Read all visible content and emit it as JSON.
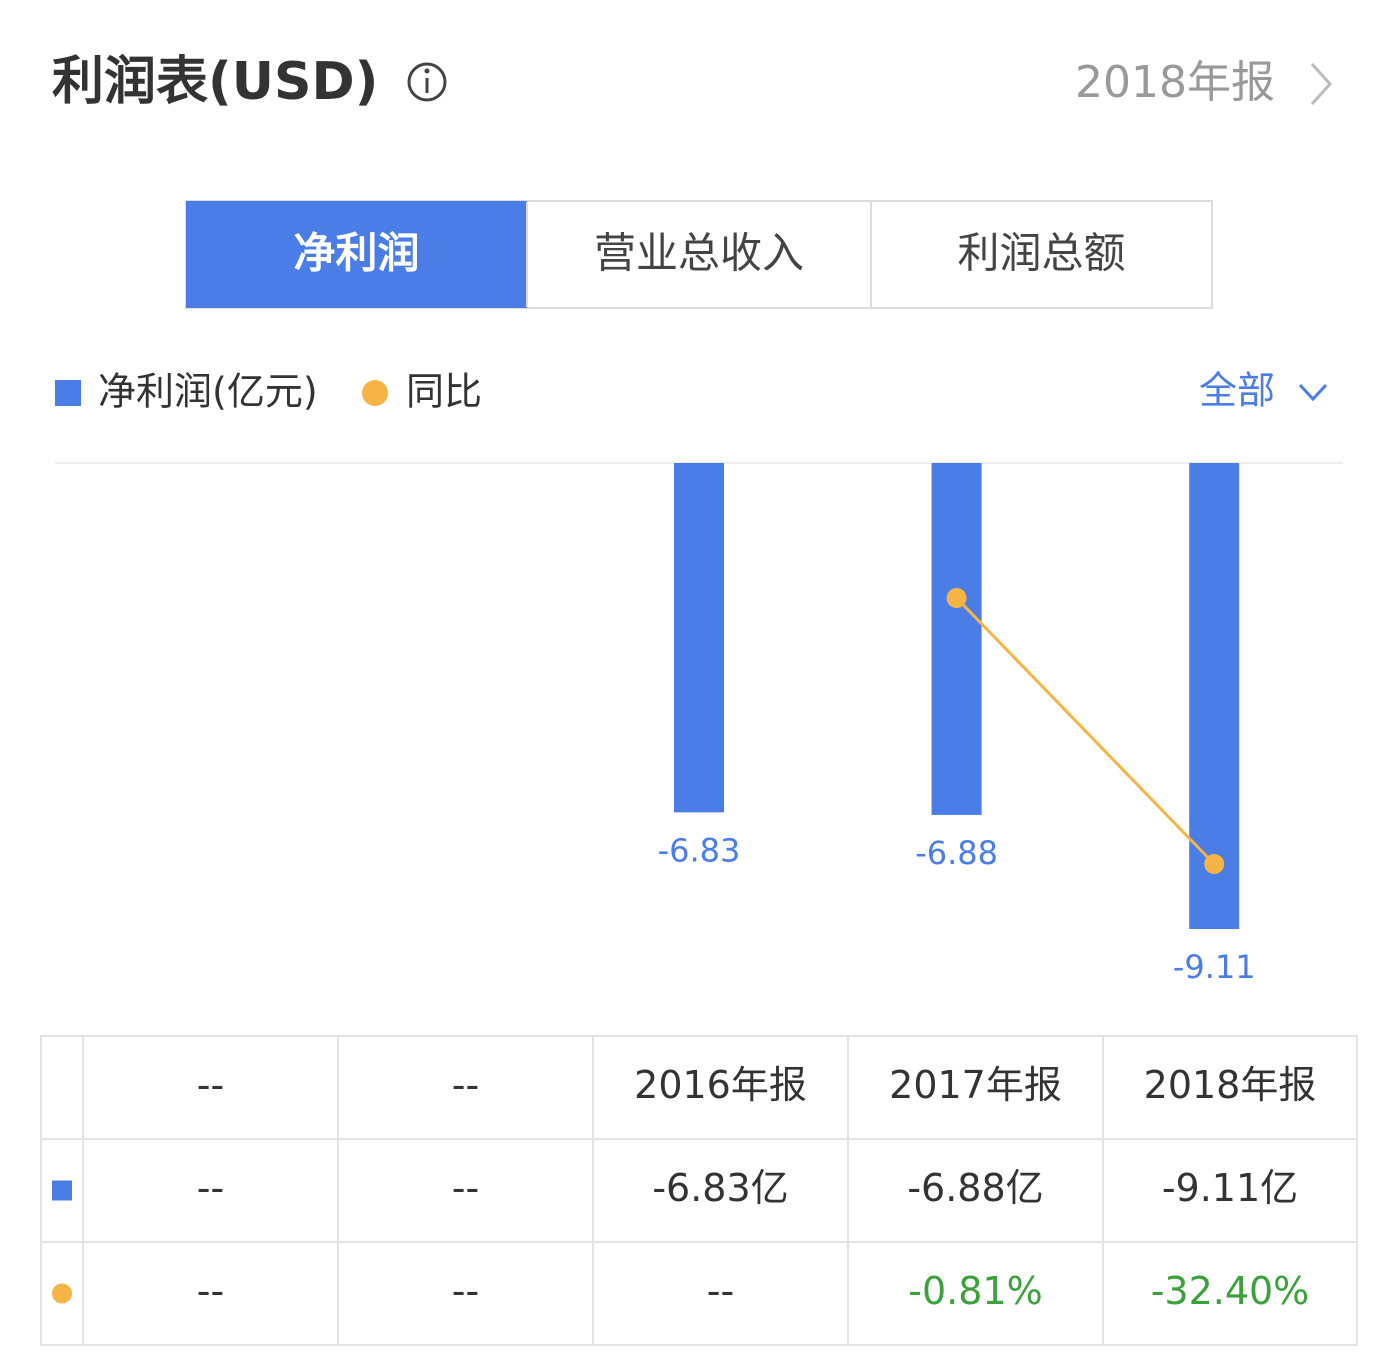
{
  "header": {
    "title": "利润表(USD)",
    "period": "2018年报"
  },
  "tabs": {
    "items": [
      "净利润",
      "营业总收入",
      "利润总额"
    ],
    "active": 0
  },
  "filter": "全部",
  "chart_data": {
    "type": "bar",
    "categories": [
      "--",
      "--",
      "2016年报",
      "2017年报",
      "2018年报"
    ],
    "series": [
      {
        "name": "净利润(亿元)",
        "color": "#4a7de6",
        "values": [
          null,
          null,
          -6.83,
          -6.88,
          -9.11
        ]
      },
      {
        "name": "同比",
        "type": "line",
        "axis": "y2",
        "color": "#f5b445",
        "values": [
          null,
          null,
          null,
          -0.81,
          -32.4
        ]
      }
    ]
  },
  "table": {
    "rows": [
      [
        "--",
        "--",
        "-6.83亿",
        "-6.88亿",
        "-9.11亿"
      ],
      [
        "--",
        "--",
        "--",
        "-0.81%",
        "-32.40%"
      ]
    ],
    "yoy_color": "#3aa23a"
  }
}
